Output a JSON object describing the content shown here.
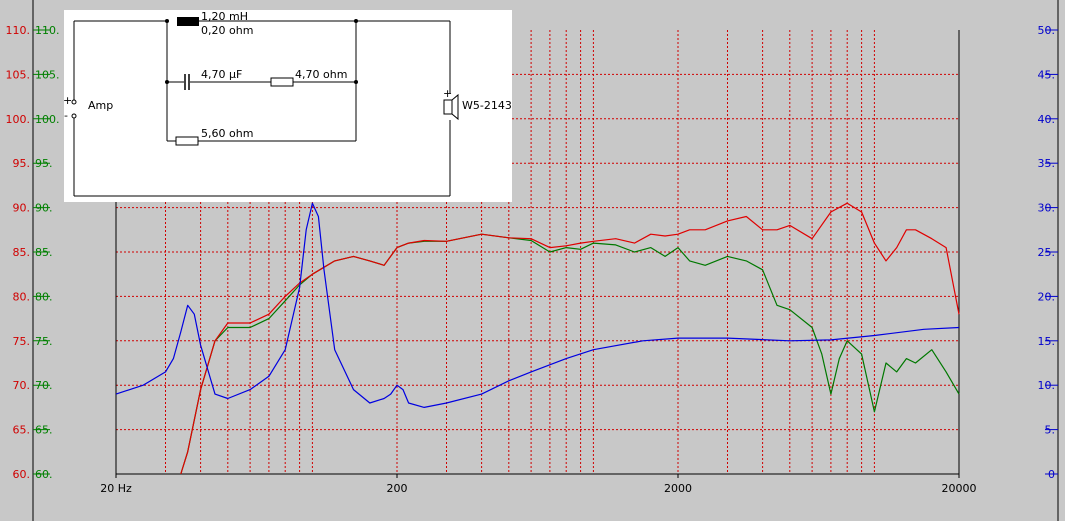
{
  "chart_data": {
    "type": "line",
    "title": "",
    "xlabel": "",
    "ylabel": "",
    "x_scale": "log",
    "xlim": [
      20,
      20000
    ],
    "x_tick_labels": [
      "20 Hz",
      "200",
      "2000",
      "20000"
    ],
    "ylim_left": [
      60,
      110
    ],
    "y_ticks_left": [
      "60.",
      "65.",
      "70.",
      "75.",
      "80.",
      "85.",
      "90.",
      "95.",
      "100.",
      "105.",
      "110."
    ],
    "ylim_right": [
      0,
      50
    ],
    "y_ticks_right": [
      "0",
      "5.",
      "10.",
      "15.",
      "20.",
      "25.",
      "30.",
      "35.",
      "40.",
      "45.",
      "50."
    ],
    "grid": true,
    "colors": {
      "red_series": "#e00000",
      "green_series": "#007800",
      "blue_series": "#0000e0",
      "grid": "#d00000",
      "left_axis_red": "#d00000",
      "left_axis_green": "#008000",
      "right_axis": "#0000cc",
      "background": "#c8c8c8"
    },
    "series": [
      {
        "axis": "left",
        "color": "red",
        "x": [
          34,
          36,
          40,
          45,
          50,
          60,
          70,
          80,
          90,
          100,
          120,
          140,
          160,
          180,
          200,
          220,
          250,
          300,
          400,
          500,
          600,
          700,
          800,
          900,
          1000,
          1200,
          1400,
          1600,
          1800,
          2000,
          2200,
          2500,
          3000,
          3500,
          4000,
          4500,
          5000,
          6000,
          7000,
          8000,
          9000,
          10000,
          11000,
          12000,
          13000,
          14000,
          16000,
          18000,
          20000
        ],
        "y": [
          60,
          62.5,
          69.5,
          75,
          77,
          77,
          78,
          80,
          81.5,
          82.5,
          84,
          84.5,
          84,
          83.5,
          85.5,
          86,
          86.3,
          86.2,
          87,
          86.6,
          86.5,
          85.5,
          85.7,
          86,
          86.2,
          86.5,
          86,
          87,
          86.8,
          87,
          87.5,
          87.5,
          88.5,
          89,
          87.5,
          87.5,
          88,
          86.5,
          89.5,
          90.5,
          89.5,
          86,
          84,
          85.5,
          87.5,
          87.5,
          86.5,
          85.5,
          78
        ]
      },
      {
        "axis": "left",
        "color": "green",
        "x": [
          34,
          36,
          40,
          45,
          50,
          60,
          70,
          80,
          90,
          100,
          120,
          140,
          160,
          180,
          200,
          220,
          250,
          300,
          400,
          500,
          600,
          700,
          800,
          900,
          1000,
          1200,
          1400,
          1600,
          1800,
          2000,
          2200,
          2500,
          3000,
          3500,
          4000,
          4500,
          5000,
          6000,
          6500,
          7000,
          7500,
          8000,
          9000,
          10000,
          11000,
          12000,
          13000,
          14000,
          16000,
          18000,
          20000
        ],
        "y": [
          60,
          62.5,
          69.5,
          75,
          76.5,
          76.5,
          77.5,
          79.5,
          81.3,
          82.5,
          84,
          84.5,
          84,
          83.5,
          85.5,
          86,
          86.2,
          86.2,
          87,
          86.6,
          86.3,
          85,
          85.5,
          85.3,
          86,
          85.8,
          85,
          85.5,
          84.5,
          85.5,
          84,
          83.5,
          84.5,
          84,
          83,
          79,
          78.5,
          76.5,
          73.5,
          69,
          73,
          75,
          73.5,
          67,
          72.5,
          71.5,
          73,
          72.5,
          74,
          71.5,
          69
        ]
      },
      {
        "axis": "right",
        "color": "blue",
        "x": [
          20,
          25,
          30,
          32,
          34,
          36,
          38,
          40,
          45,
          50,
          60,
          70,
          80,
          90,
          95,
          100,
          105,
          110,
          120,
          140,
          160,
          180,
          190,
          200,
          210,
          220,
          250,
          300,
          400,
          500,
          600,
          800,
          1000,
          1500,
          2000,
          3000,
          5000,
          7000,
          10000,
          15000,
          20000
        ],
        "y": [
          9,
          10,
          11.5,
          13,
          16,
          19,
          18,
          14.5,
          9,
          8.5,
          9.5,
          11,
          14,
          21,
          27.5,
          30.5,
          29,
          23,
          14,
          9.5,
          8,
          8.5,
          9,
          10,
          9.5,
          8,
          7.5,
          8,
          9,
          10.5,
          11.5,
          13,
          14,
          15,
          15.3,
          15.3,
          15,
          15.1,
          15.6,
          16.3,
          16.5
        ]
      }
    ]
  },
  "schematic": {
    "input_label": "Amp",
    "plus_sign": "+",
    "minus_sign": "-",
    "inductor_value": "1,20 mH",
    "inductor_resistance": "0,20 ohm",
    "capacitor_value": "4,70 µF",
    "series_resistor_value": "4,70 ohm",
    "parallel_resistor_value": "5,60 ohm",
    "driver_label": "W5-2143",
    "driver_plus": "+"
  }
}
